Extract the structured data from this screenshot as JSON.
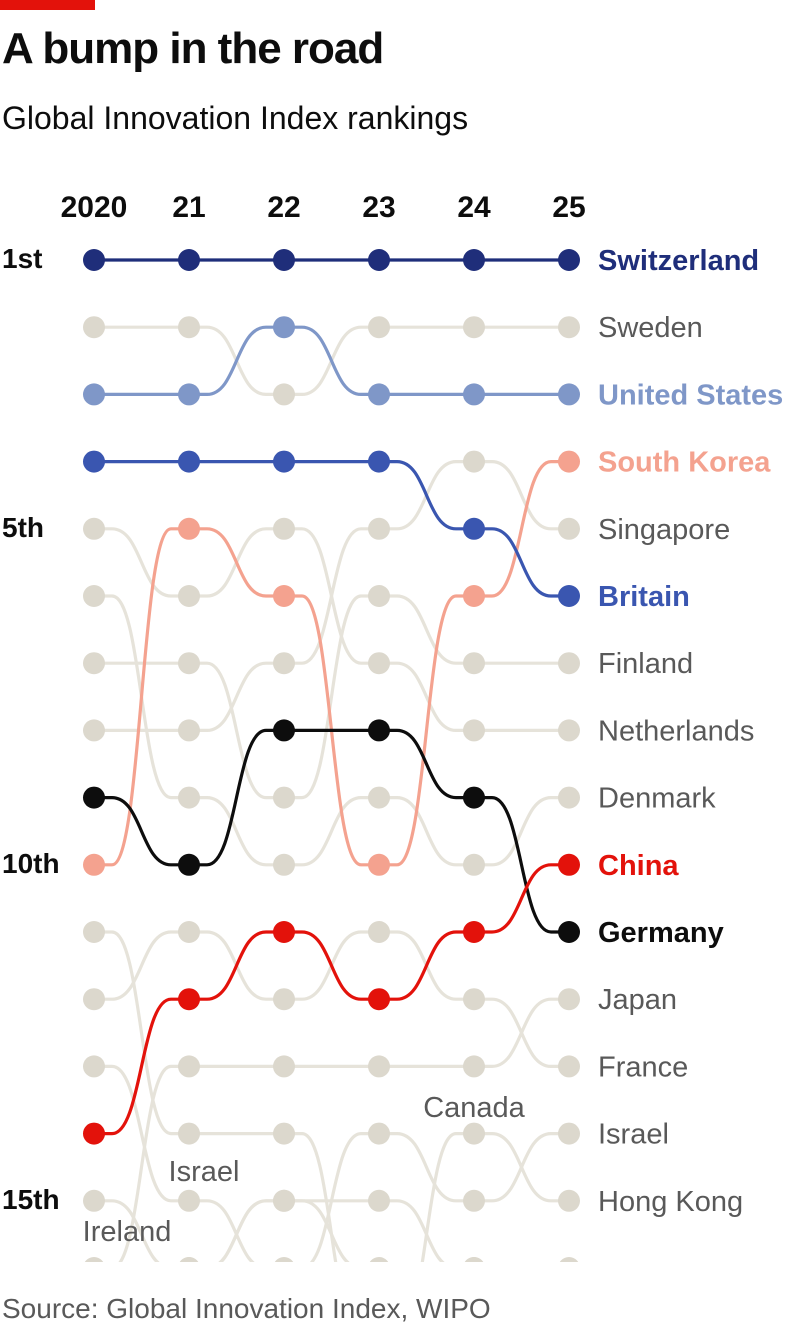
{
  "header": {
    "title": "A bump in the road",
    "subtitle": "Global Innovation Index rankings"
  },
  "footer": {
    "source": "Source: Global Innovation Index, WIPO"
  },
  "colors": {
    "background_line": "#e6e3da",
    "background_dot": "#dcd8cd",
    "background_label": "#595959",
    "switzerland": "#1f2e7a",
    "united_states": "#7f97c8",
    "britain": "#3a56b0",
    "south_korea": "#f4a28f",
    "china": "#e3120b",
    "germany": "#0d0d0d",
    "accent_bar": "#e3120b"
  },
  "chart_data": {
    "type": "bump",
    "title": "A bump in the road",
    "subtitle": "Global Innovation Index rankings",
    "x_labels": [
      "2020",
      "21",
      "22",
      "23",
      "24",
      "25"
    ],
    "years": [
      2020,
      2021,
      2022,
      2023,
      2024,
      2025
    ],
    "rank_labels": [
      {
        "rank": 1,
        "label": "1st"
      },
      {
        "rank": 5,
        "label": "5th"
      },
      {
        "rank": 10,
        "label": "10th"
      },
      {
        "rank": 15,
        "label": "15th"
      }
    ],
    "ylim": [
      1,
      15
    ],
    "highlighted_series": [
      {
        "name": "Switzerland",
        "color": "#1f2e7a",
        "ranks": [
          1,
          1,
          1,
          1,
          1,
          1
        ]
      },
      {
        "name": "United States",
        "color": "#7f97c8",
        "ranks": [
          3,
          3,
          2,
          3,
          3,
          3
        ]
      },
      {
        "name": "South Korea",
        "color": "#f4a28f",
        "ranks": [
          10,
          5,
          6,
          10,
          6,
          4
        ]
      },
      {
        "name": "Britain",
        "color": "#3a56b0",
        "ranks": [
          4,
          4,
          4,
          4,
          5,
          6
        ]
      },
      {
        "name": "Germany",
        "color": "#0d0d0d",
        "ranks": [
          9,
          10,
          8,
          8,
          9,
          11
        ]
      },
      {
        "name": "China",
        "color": "#e3120b",
        "ranks": [
          14,
          12,
          11,
          12,
          11,
          10
        ]
      }
    ],
    "background_series": [
      {
        "name": "Sweden",
        "ranks": [
          2,
          2,
          3,
          2,
          2,
          2
        ]
      },
      {
        "name": "Singapore",
        "ranks": [
          8,
          8,
          7,
          5,
          4,
          5
        ]
      },
      {
        "name": "Finland",
        "ranks": [
          7,
          7,
          9,
          6,
          7,
          7
        ]
      },
      {
        "name": "Netherlands",
        "ranks": [
          5,
          6,
          5,
          7,
          8,
          8
        ]
      },
      {
        "name": "Denmark",
        "ranks": [
          6,
          9,
          10,
          9,
          10,
          9
        ]
      },
      {
        "name": "Japan",
        "ranks": [
          16,
          13,
          13,
          13,
          13,
          12
        ]
      },
      {
        "name": "France",
        "ranks": [
          12,
          11,
          12,
          11,
          12,
          13
        ]
      },
      {
        "name": "Israel",
        "ranks": [
          13,
          15,
          16,
          14,
          15,
          14
        ]
      },
      {
        "name": "Hong Kong",
        "ranks": [
          11,
          14,
          14,
          17,
          14,
          15
        ]
      },
      {
        "name": "Ireland",
        "ranks": [
          15,
          16,
          15,
          15,
          16,
          16
        ]
      },
      {
        "name": "Canada",
        "ranks": [
          17,
          16,
          15,
          16,
          16,
          17
        ]
      }
    ],
    "inline_labels": [
      {
        "text": "Canada",
        "series": "Canada",
        "year": 2024
      },
      {
        "text": "Israel",
        "series": "Israel",
        "year": 2021
      },
      {
        "text": "Ireland",
        "series": "Ireland",
        "year": 2020
      }
    ],
    "grid": false,
    "legend": "right-end-labels"
  }
}
